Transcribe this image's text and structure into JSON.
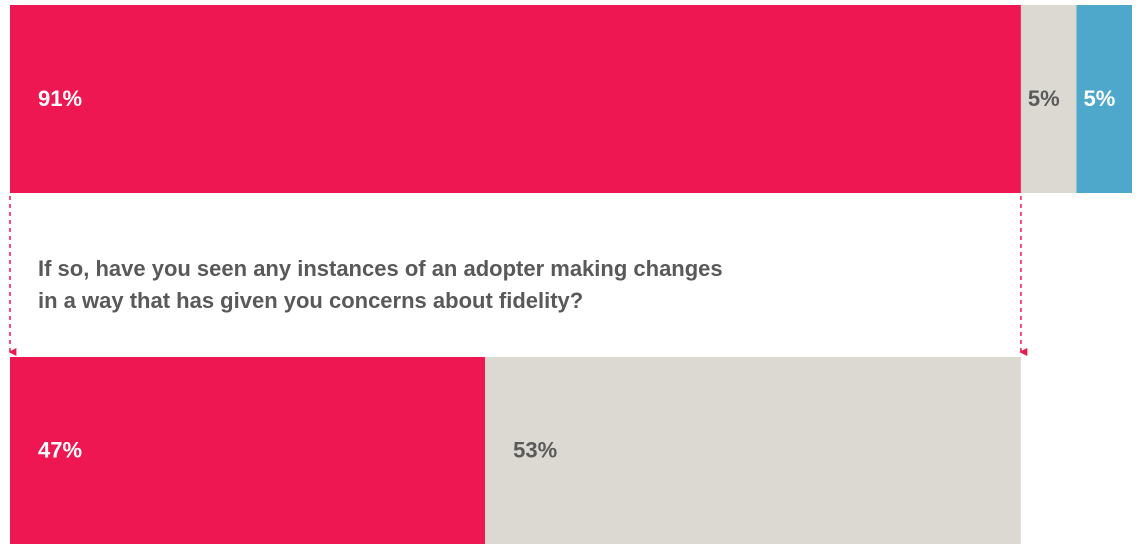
{
  "chart_data": [
    {
      "type": "bar",
      "series": [
        {
          "color": "#ef1752",
          "label_color": "#ffffff",
          "values": [
            91
          ]
        },
        {
          "color": "#dcd9d3",
          "label_color": "#5a5a5a",
          "values": [
            5
          ]
        },
        {
          "color": "#4ea8cc",
          "label_color": "#ffffff",
          "values": [
            5
          ]
        }
      ],
      "value_labels": [
        "91%",
        "5%",
        "5%"
      ]
    },
    {
      "type": "bar",
      "title": [
        "If so, have you seen any instances of an adopter making changes",
        "in a way that has given you concerns about fidelity?"
      ],
      "series": [
        {
          "color": "#ef1752",
          "label_color": "#ffffff",
          "values": [
            47
          ]
        },
        {
          "color": "#dcd9d3",
          "label_color": "#5a5a5a",
          "values": [
            53
          ]
        }
      ],
      "value_labels": [
        "47%",
        "53%"
      ]
    }
  ]
}
